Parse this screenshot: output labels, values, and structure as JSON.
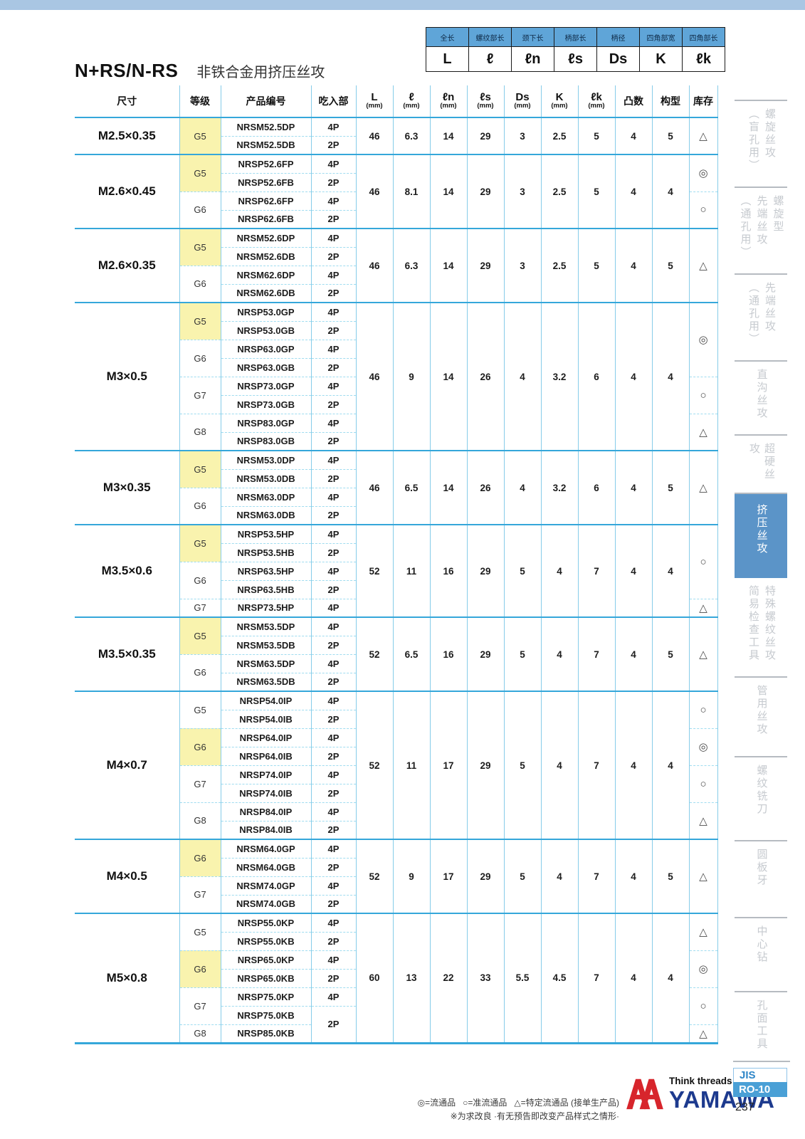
{
  "header": {
    "title_code": "N+RS/N-RS",
    "title_desc": "非铁合金用挤压丝攻"
  },
  "dim_legend": {
    "columns": [
      {
        "label": "全长",
        "symbol": "L"
      },
      {
        "label": "螺纹部长",
        "symbol": "ℓ"
      },
      {
        "label": "颈下长",
        "symbol": "ℓn"
      },
      {
        "label": "柄部长",
        "symbol": "ℓs"
      },
      {
        "label": "柄径",
        "symbol": "Ds"
      },
      {
        "label": "四角部宽",
        "symbol": "K"
      },
      {
        "label": "四角部长",
        "symbol": "ℓk"
      }
    ]
  },
  "table": {
    "headers": {
      "size": "尺寸",
      "grade": "等级",
      "code": "产品编号",
      "chamfer": "吃入部",
      "dims": [
        {
          "sym": "L",
          "unit": "(mm)"
        },
        {
          "sym": "ℓ",
          "unit": "(mm)"
        },
        {
          "sym": "ℓn",
          "unit": "(mm)"
        },
        {
          "sym": "ℓs",
          "unit": "(mm)"
        },
        {
          "sym": "Ds",
          "unit": "(mm)"
        },
        {
          "sym": "K",
          "unit": "(mm)"
        },
        {
          "sym": "ℓk",
          "unit": "(mm)"
        }
      ],
      "protrusions": "凸数",
      "form": "构型",
      "stock": "库存"
    },
    "groups": [
      {
        "size": "M2.5×0.35",
        "values": [
          "46",
          "6.3",
          "14",
          "29",
          "3",
          "2.5",
          "5",
          "4",
          "5"
        ],
        "grades": [
          {
            "grade": "G5",
            "highlight": true,
            "products": [
              {
                "code": "NRSM52.5DP",
                "chamfer": "4P"
              },
              {
                "code": "NRSM52.5DB",
                "chamfer": "2P"
              }
            ]
          }
        ],
        "stock": [
          {
            "symbol": "△",
            "rows": 2
          }
        ]
      },
      {
        "size": "M2.6×0.45",
        "values": [
          "46",
          "8.1",
          "14",
          "29",
          "3",
          "2.5",
          "5",
          "4",
          "4"
        ],
        "grades": [
          {
            "grade": "G5",
            "highlight": true,
            "products": [
              {
                "code": "NRSP52.6FP",
                "chamfer": "4P"
              },
              {
                "code": "NRSP52.6FB",
                "chamfer": "2P"
              }
            ]
          },
          {
            "grade": "G6",
            "highlight": false,
            "products": [
              {
                "code": "NRSP62.6FP",
                "chamfer": "4P"
              },
              {
                "code": "NRSP62.6FB",
                "chamfer": "2P"
              }
            ]
          }
        ],
        "stock": [
          {
            "symbol": "◎",
            "rows": 2
          },
          {
            "symbol": "○",
            "rows": 2
          }
        ]
      },
      {
        "size": "M2.6×0.35",
        "values": [
          "46",
          "6.3",
          "14",
          "29",
          "3",
          "2.5",
          "5",
          "4",
          "5"
        ],
        "grades": [
          {
            "grade": "G5",
            "highlight": true,
            "products": [
              {
                "code": "NRSM52.6DP",
                "chamfer": "4P"
              },
              {
                "code": "NRSM52.6DB",
                "chamfer": "2P"
              }
            ]
          },
          {
            "grade": "G6",
            "highlight": false,
            "products": [
              {
                "code": "NRSM62.6DP",
                "chamfer": "4P"
              },
              {
                "code": "NRSM62.6DB",
                "chamfer": "2P"
              }
            ]
          }
        ],
        "stock": [
          {
            "symbol": "△",
            "rows": 4
          }
        ]
      },
      {
        "size": "M3×0.5",
        "values": [
          "46",
          "9",
          "14",
          "26",
          "4",
          "3.2",
          "6",
          "4",
          "4"
        ],
        "grades": [
          {
            "grade": "G5",
            "highlight": true,
            "products": [
              {
                "code": "NRSP53.0GP",
                "chamfer": "4P"
              },
              {
                "code": "NRSP53.0GB",
                "chamfer": "2P"
              }
            ]
          },
          {
            "grade": "G6",
            "highlight": false,
            "products": [
              {
                "code": "NRSP63.0GP",
                "chamfer": "4P"
              },
              {
                "code": "NRSP63.0GB",
                "chamfer": "2P"
              }
            ]
          },
          {
            "grade": "G7",
            "highlight": false,
            "products": [
              {
                "code": "NRSP73.0GP",
                "chamfer": "4P"
              },
              {
                "code": "NRSP73.0GB",
                "chamfer": "2P"
              }
            ]
          },
          {
            "grade": "G8",
            "highlight": false,
            "products": [
              {
                "code": "NRSP83.0GP",
                "chamfer": "4P"
              },
              {
                "code": "NRSP83.0GB",
                "chamfer": "2P"
              }
            ]
          }
        ],
        "stock": [
          {
            "symbol": "◎",
            "rows": 4
          },
          {
            "symbol": "○",
            "rows": 2
          },
          {
            "symbol": "△",
            "rows": 2
          }
        ]
      },
      {
        "size": "M3×0.35",
        "values": [
          "46",
          "6.5",
          "14",
          "26",
          "4",
          "3.2",
          "6",
          "4",
          "5"
        ],
        "grades": [
          {
            "grade": "G5",
            "highlight": true,
            "products": [
              {
                "code": "NRSM53.0DP",
                "chamfer": "4P"
              },
              {
                "code": "NRSM53.0DB",
                "chamfer": "2P"
              }
            ]
          },
          {
            "grade": "G6",
            "highlight": false,
            "products": [
              {
                "code": "NRSM63.0DP",
                "chamfer": "4P"
              },
              {
                "code": "NRSM63.0DB",
                "chamfer": "2P"
              }
            ]
          }
        ],
        "stock": [
          {
            "symbol": "△",
            "rows": 4
          }
        ]
      },
      {
        "size": "M3.5×0.6",
        "values": [
          "52",
          "11",
          "16",
          "29",
          "5",
          "4",
          "7",
          "4",
          "4"
        ],
        "grades": [
          {
            "grade": "G5",
            "highlight": true,
            "products": [
              {
                "code": "NRSP53.5HP",
                "chamfer": "4P"
              },
              {
                "code": "NRSP53.5HB",
                "chamfer": "2P"
              }
            ]
          },
          {
            "grade": "G6",
            "highlight": false,
            "products": [
              {
                "code": "NRSP63.5HP",
                "chamfer": "4P"
              },
              {
                "code": "NRSP63.5HB",
                "chamfer": "2P"
              }
            ]
          },
          {
            "grade": "G7",
            "highlight": false,
            "products": [
              {
                "code": "NRSP73.5HP",
                "chamfer": "4P"
              }
            ]
          }
        ],
        "stock": [
          {
            "symbol": "○",
            "rows": 4
          },
          {
            "symbol": "△",
            "rows": 1
          }
        ]
      },
      {
        "size": "M3.5×0.35",
        "values": [
          "52",
          "6.5",
          "16",
          "29",
          "5",
          "4",
          "7",
          "4",
          "5"
        ],
        "grades": [
          {
            "grade": "G5",
            "highlight": true,
            "products": [
              {
                "code": "NRSM53.5DP",
                "chamfer": "4P"
              },
              {
                "code": "NRSM53.5DB",
                "chamfer": "2P"
              }
            ]
          },
          {
            "grade": "G6",
            "highlight": false,
            "products": [
              {
                "code": "NRSM63.5DP",
                "chamfer": "4P"
              },
              {
                "code": "NRSM63.5DB",
                "chamfer": "2P"
              }
            ]
          }
        ],
        "stock": [
          {
            "symbol": "△",
            "rows": 4
          }
        ]
      },
      {
        "size": "M4×0.7",
        "values": [
          "52",
          "11",
          "17",
          "29",
          "5",
          "4",
          "7",
          "4",
          "4"
        ],
        "grades": [
          {
            "grade": "G5",
            "highlight": false,
            "products": [
              {
                "code": "NRSP54.0IP",
                "chamfer": "4P"
              },
              {
                "code": "NRSP54.0IB",
                "chamfer": "2P"
              }
            ]
          },
          {
            "grade": "G6",
            "highlight": true,
            "products": [
              {
                "code": "NRSP64.0IP",
                "chamfer": "4P"
              },
              {
                "code": "NRSP64.0IB",
                "chamfer": "2P"
              }
            ]
          },
          {
            "grade": "G7",
            "highlight": false,
            "products": [
              {
                "code": "NRSP74.0IP",
                "chamfer": "4P"
              },
              {
                "code": "NRSP74.0IB",
                "chamfer": "2P"
              }
            ]
          },
          {
            "grade": "G8",
            "highlight": false,
            "products": [
              {
                "code": "NRSP84.0IP",
                "chamfer": "4P"
              },
              {
                "code": "NRSP84.0IB",
                "chamfer": "2P"
              }
            ]
          }
        ],
        "stock": [
          {
            "symbol": "○",
            "rows": 2
          },
          {
            "symbol": "◎",
            "rows": 2
          },
          {
            "symbol": "○",
            "rows": 2
          },
          {
            "symbol": "△",
            "rows": 2
          }
        ]
      },
      {
        "size": "M4×0.5",
        "values": [
          "52",
          "9",
          "17",
          "29",
          "5",
          "4",
          "7",
          "4",
          "5"
        ],
        "grades": [
          {
            "grade": "G6",
            "highlight": true,
            "products": [
              {
                "code": "NRSM64.0GP",
                "chamfer": "4P"
              },
              {
                "code": "NRSM64.0GB",
                "chamfer": "2P"
              }
            ]
          },
          {
            "grade": "G7",
            "highlight": false,
            "products": [
              {
                "code": "NRSM74.0GP",
                "chamfer": "4P"
              },
              {
                "code": "NRSM74.0GB",
                "chamfer": "2P"
              }
            ]
          }
        ],
        "stock": [
          {
            "symbol": "△",
            "rows": 4
          }
        ]
      },
      {
        "size": "M5×0.8",
        "values": [
          "60",
          "13",
          "22",
          "33",
          "5.5",
          "4.5",
          "7",
          "4",
          "4"
        ],
        "grades": [
          {
            "grade": "G5",
            "highlight": false,
            "products": [
              {
                "code": "NRSP55.0KP",
                "chamfer": "4P"
              },
              {
                "code": "NRSP55.0KB",
                "chamfer": "2P"
              }
            ]
          },
          {
            "grade": "G6",
            "highlight": true,
            "products": [
              {
                "code": "NRSP65.0KP",
                "chamfer": "4P"
              },
              {
                "code": "NRSP65.0KB",
                "chamfer": "2P"
              }
            ]
          },
          {
            "grade": "G7",
            "highlight": false,
            "products": [
              {
                "code": "NRSP75.0KP",
                "chamfer": "4P"
              },
              {
                "code": "NRSP75.0KB",
                "chamfer": "2P",
                "chamfer_span": 2
              }
            ]
          },
          {
            "grade": "G8",
            "highlight": false,
            "products": [
              {
                "code": "NRSP85.0KB",
                "chamfer": null
              }
            ]
          }
        ],
        "stock": [
          {
            "symbol": "△",
            "rows": 2
          },
          {
            "symbol": "◎",
            "rows": 2
          },
          {
            "symbol": "○",
            "rows": 2
          },
          {
            "symbol": "△",
            "rows": 1
          }
        ]
      }
    ]
  },
  "sidebar": {
    "tabs": [
      {
        "lines": [
          "螺旋丝攻",
          "（盲孔用）"
        ],
        "active": false
      },
      {
        "lines": [
          "螺旋型",
          "先端丝攻",
          "（通孔用）"
        ],
        "active": false
      },
      {
        "lines": [
          "先端丝攻",
          "（通孔用）"
        ],
        "active": false
      },
      {
        "lines": [
          "直沟丝攻"
        ],
        "active": false
      },
      {
        "lines": [
          "超硬丝攻"
        ],
        "active": false
      },
      {
        "lines": [
          "挤压丝攻"
        ],
        "active": true
      },
      {
        "lines": [
          "特殊螺纹丝攻",
          "简易检查工具"
        ],
        "active": false
      },
      {
        "lines": [
          "管用丝攻"
        ],
        "active": false
      },
      {
        "lines": [
          "螺纹铣刀"
        ],
        "active": false
      },
      {
        "lines": [
          "圆板牙"
        ],
        "active": false
      },
      {
        "lines": [
          "中心钻"
        ],
        "active": false
      },
      {
        "lines": [
          "孔面工具"
        ],
        "active": false
      }
    ]
  },
  "footer": {
    "stock_legend": [
      "◎=流通品",
      "○=准流通品",
      "△=特定流通品 (接单生产品)"
    ],
    "note": "※为求改良 ·有无预告即改变产品样式之情形·",
    "tagline": "Think threads with",
    "brand": "YAMAWA"
  },
  "page_ref": {
    "standard": "JIS",
    "code": "RO-10",
    "page": "237"
  }
}
